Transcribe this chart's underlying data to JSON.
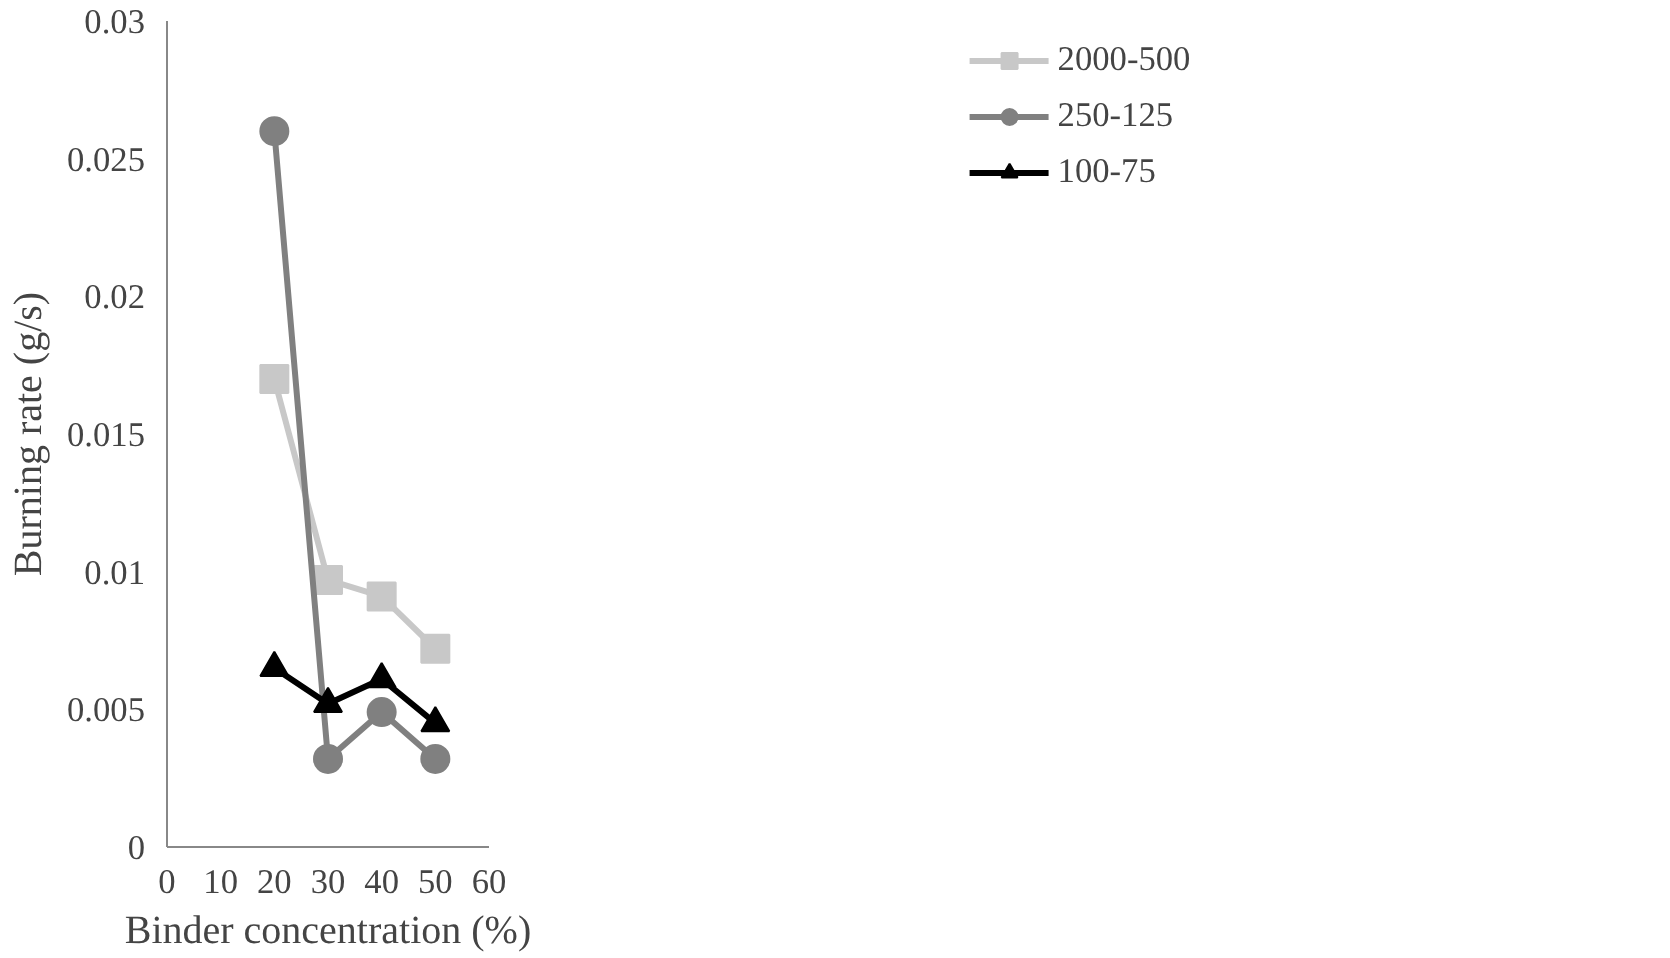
{
  "chart_data": {
    "type": "line",
    "xlabel": "Binder concentration (%)",
    "ylabel": "Burning rate (g/s)",
    "x": [
      20,
      30,
      40,
      50
    ],
    "series": [
      {
        "name": "2000-500",
        "color": "#c8c8c8",
        "marker": "square",
        "values": [
          0.017,
          0.0097,
          0.0091,
          0.0072
        ]
      },
      {
        "name": "250-125",
        "color": "#808080",
        "marker": "circle",
        "values": [
          0.026,
          0.0032,
          0.0049,
          0.0032
        ]
      },
      {
        "name": "100-75",
        "color": "#000000",
        "marker": "triangle",
        "values": [
          0.0065,
          0.0052,
          0.0061,
          0.0045
        ]
      }
    ],
    "xlim": [
      0,
      60
    ],
    "xticks": [
      0,
      10,
      20,
      30,
      40,
      50,
      60
    ],
    "ylim": [
      0,
      0.03
    ],
    "yticks": [
      0,
      0.005,
      0.01,
      0.015,
      0.02,
      0.025,
      0.03
    ],
    "grid": false,
    "legend": "top right",
    "line_style": "solid"
  }
}
